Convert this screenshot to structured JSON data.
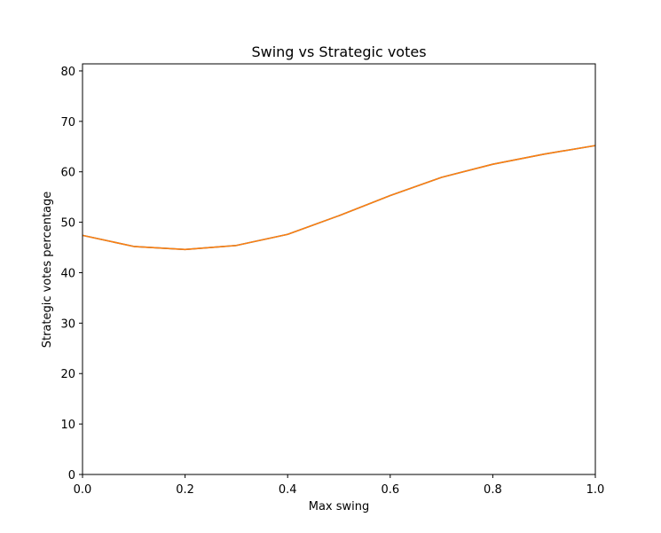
{
  "chart_data": {
    "type": "line",
    "title": "Swing vs Strategic votes",
    "xlabel": "Max swing",
    "ylabel": "Strategic votes percentage",
    "xlim": [
      0.0,
      1.0
    ],
    "ylim": [
      0,
      81.4
    ],
    "xticks": [
      "0.0",
      "0.2",
      "0.4",
      "0.6",
      "0.8",
      "1.0"
    ],
    "yticks": [
      "0",
      "10",
      "20",
      "30",
      "40",
      "50",
      "60",
      "70",
      "80"
    ],
    "grid": false,
    "series": [
      {
        "color": "#1f77b4",
        "x": [
          0.0,
          0.1,
          0.2,
          0.3,
          0.4,
          0.5,
          0.6,
          0.7,
          0.8,
          0.9,
          1.0
        ],
        "y": [
          47.4,
          45.2,
          44.6,
          45.4,
          47.6,
          51.3,
          55.3,
          58.9,
          61.5,
          63.5,
          65.2
        ]
      },
      {
        "color": "#ff7f0e",
        "x": [
          0.0,
          0.1,
          0.2,
          0.3,
          0.4,
          0.5,
          0.6,
          0.7,
          0.8,
          0.9,
          1.0
        ],
        "y": [
          47.4,
          45.2,
          44.6,
          45.4,
          47.6,
          51.3,
          55.3,
          58.9,
          61.5,
          63.5,
          65.2
        ]
      }
    ]
  }
}
